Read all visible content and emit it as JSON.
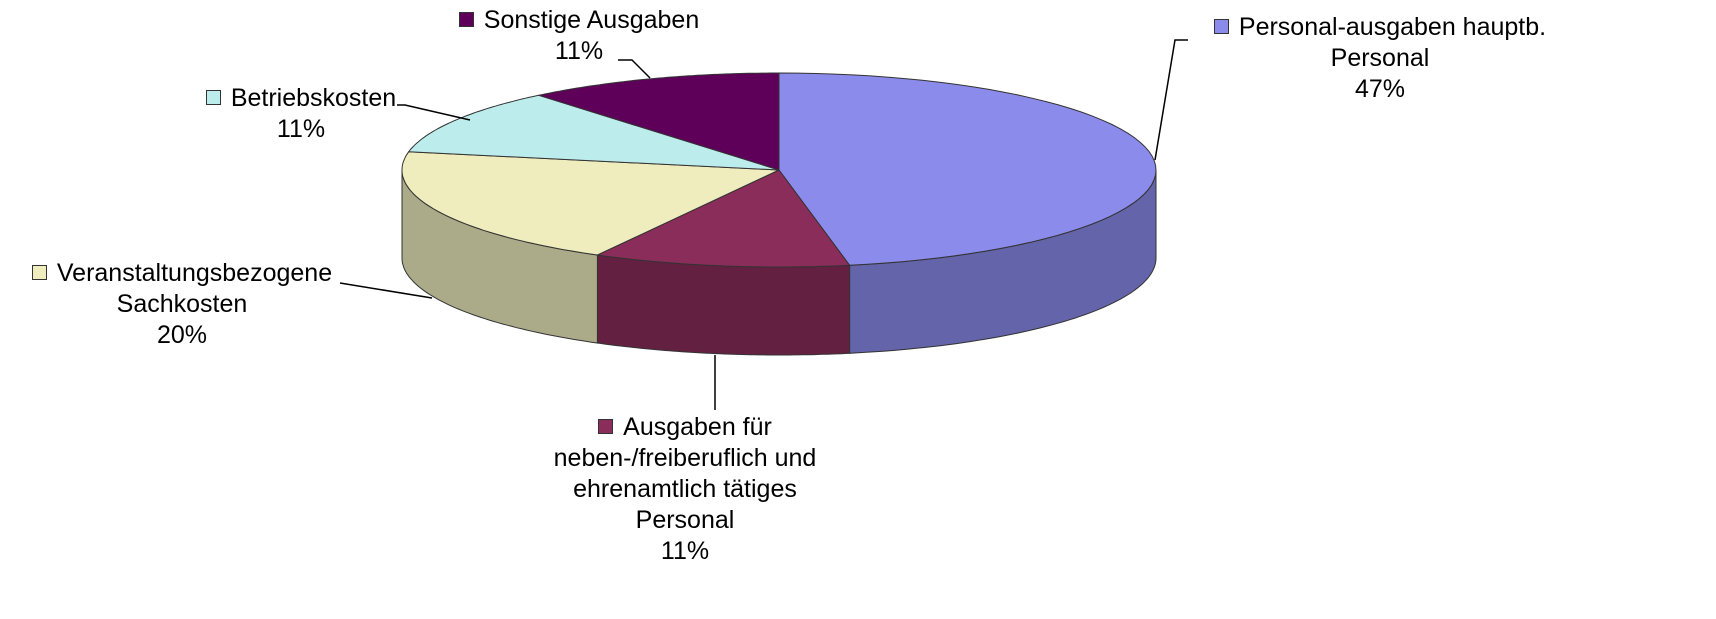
{
  "chart_data": {
    "type": "pie3d",
    "categories": [
      "Personal-ausgaben hauptb. Personal",
      "Ausgaben für neben-/freiberuflich und ehrenamtlich tätiges Personal",
      "Veranstaltungsbezogene Sachkosten",
      "Betriebskosten",
      "Sonstige Ausgaben"
    ],
    "values": [
      47,
      11,
      20,
      11,
      11
    ],
    "value_labels": [
      "47%",
      "11%",
      "20%",
      "11%",
      "11%"
    ],
    "colors": [
      "#8b8bec",
      "#8b2d5a",
      "#efedbe",
      "#bdeced",
      "#5e005a"
    ]
  }
}
